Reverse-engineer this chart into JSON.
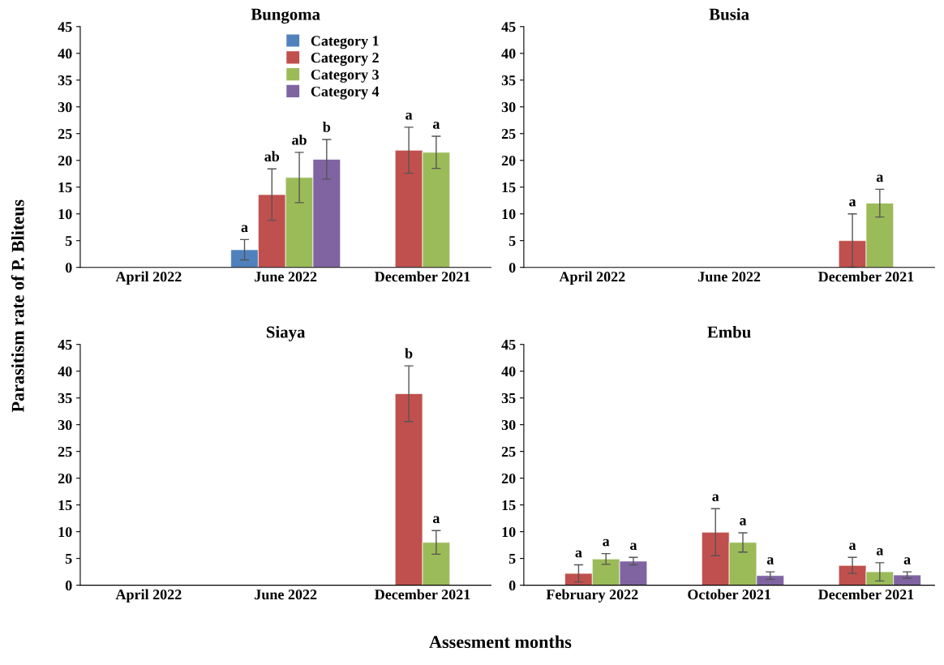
{
  "chart_data": [
    {
      "type": "bar",
      "title": "Bungoma",
      "ylabel": "Parasitism rate of P. Bliteus",
      "xlabel": "Assesment months",
      "categories": [
        "April 2022",
        "June 2022",
        "December 2021"
      ],
      "ylim": [
        0,
        45
      ],
      "yticks": [
        0,
        5,
        10,
        15,
        20,
        25,
        30,
        35,
        40,
        45
      ],
      "legend": "top right",
      "series": [
        {
          "name": "Category 1",
          "color": "#4f81bd",
          "values": [
            null,
            3.3,
            null
          ],
          "errors": [
            null,
            1.9,
            null
          ],
          "value_labels": [
            null,
            "a",
            null
          ]
        },
        {
          "name": "Category 2",
          "color": "#c0504d",
          "values": [
            null,
            13.6,
            21.9
          ],
          "errors": [
            null,
            4.8,
            4.3
          ],
          "value_labels": [
            null,
            "ab",
            "a"
          ]
        },
        {
          "name": "Category 3",
          "color": "#9bbb59",
          "values": [
            null,
            16.8,
            21.5
          ],
          "errors": [
            null,
            4.7,
            3.0
          ],
          "value_labels": [
            null,
            "ab",
            "a"
          ]
        },
        {
          "name": "Category 4",
          "color": "#8064a2",
          "values": [
            null,
            20.2,
            null
          ],
          "errors": [
            null,
            3.7,
            null
          ],
          "value_labels": [
            null,
            "b",
            null
          ]
        }
      ]
    },
    {
      "type": "bar",
      "title": "Busia",
      "categories": [
        "April 2022",
        "June 2022",
        "December 2021"
      ],
      "ylim": [
        0,
        45
      ],
      "yticks": [
        0,
        5,
        10,
        15,
        20,
        25,
        30,
        35,
        40,
        45
      ],
      "series": [
        {
          "color": "#4f81bd",
          "values": [
            null,
            null,
            null
          ]
        },
        {
          "color": "#c0504d",
          "values": [
            null,
            null,
            5.0
          ],
          "errors": [
            null,
            null,
            5.0
          ],
          "value_labels": [
            null,
            null,
            "a"
          ]
        },
        {
          "color": "#9bbb59",
          "values": [
            null,
            null,
            12.0
          ],
          "errors": [
            null,
            null,
            2.6
          ],
          "value_labels": [
            null,
            null,
            "a"
          ]
        },
        {
          "color": "#8064a2",
          "values": [
            null,
            null,
            null
          ]
        }
      ]
    },
    {
      "type": "bar",
      "title": "Siaya",
      "categories": [
        "April 2022",
        "June 2022",
        "December 2021"
      ],
      "ylim": [
        0,
        45
      ],
      "yticks": [
        0,
        5,
        10,
        15,
        20,
        25,
        30,
        35,
        40,
        45
      ],
      "series": [
        {
          "color": "#4f81bd",
          "values": [
            null,
            null,
            null
          ]
        },
        {
          "color": "#c0504d",
          "values": [
            null,
            null,
            35.8
          ],
          "errors": [
            null,
            null,
            5.2
          ],
          "value_labels": [
            null,
            null,
            "b"
          ]
        },
        {
          "color": "#9bbb59",
          "values": [
            null,
            null,
            8.0
          ],
          "errors": [
            null,
            null,
            2.2
          ],
          "value_labels": [
            null,
            null,
            "a"
          ]
        },
        {
          "color": "#8064a2",
          "values": [
            null,
            null,
            null
          ]
        }
      ]
    },
    {
      "type": "bar",
      "title": "Embu",
      "categories": [
        "February 2022",
        "October 2021",
        "December 2021"
      ],
      "ylim": [
        0,
        45
      ],
      "yticks": [
        0,
        5,
        10,
        15,
        20,
        25,
        30,
        35,
        40,
        45
      ],
      "series": [
        {
          "color": "#4f81bd",
          "values": [
            null,
            null,
            null
          ]
        },
        {
          "color": "#c0504d",
          "values": [
            2.2,
            9.9,
            3.7
          ],
          "errors": [
            1.6,
            4.4,
            1.5
          ],
          "value_labels": [
            "a",
            "a",
            "a"
          ]
        },
        {
          "color": "#9bbb59",
          "values": [
            4.9,
            8.0,
            2.5
          ],
          "errors": [
            1.0,
            1.8,
            1.7
          ],
          "value_labels": [
            "a",
            "a",
            "a"
          ]
        },
        {
          "color": "#8064a2",
          "values": [
            4.5,
            1.8,
            1.9
          ],
          "errors": [
            0.7,
            0.7,
            0.6
          ],
          "value_labels": [
            "a",
            "a",
            "a"
          ]
        }
      ]
    }
  ]
}
